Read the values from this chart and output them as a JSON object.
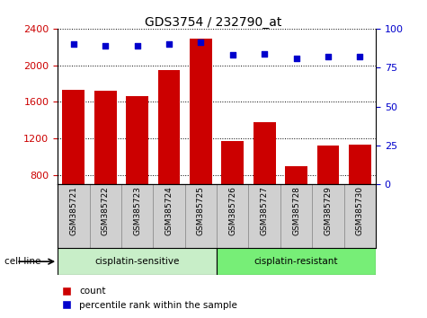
{
  "title": "GDS3754 / 232790_at",
  "samples": [
    "GSM385721",
    "GSM385722",
    "GSM385723",
    "GSM385724",
    "GSM385725",
    "GSM385726",
    "GSM385727",
    "GSM385728",
    "GSM385729",
    "GSM385730"
  ],
  "counts": [
    1730,
    1720,
    1660,
    1950,
    2290,
    1175,
    1380,
    900,
    1120,
    1130
  ],
  "percentile_ranks": [
    90,
    89,
    89,
    90,
    91,
    83,
    84,
    81,
    82,
    82
  ],
  "n_sensitive": 5,
  "n_resistant": 5,
  "ylim_left": [
    700,
    2400
  ],
  "ylim_right": [
    0,
    100
  ],
  "yticks_left": [
    800,
    1200,
    1600,
    2000,
    2400
  ],
  "yticks_right": [
    0,
    25,
    50,
    75,
    100
  ],
  "bar_color": "#cc0000",
  "scatter_color": "#0000cc",
  "sensitive_color": "#c8eec8",
  "resistant_color": "#77ee77",
  "ticklabel_bg": "#d0d0d0",
  "legend_items": [
    "count",
    "percentile rank within the sample"
  ],
  "cell_line_label": "cell line"
}
